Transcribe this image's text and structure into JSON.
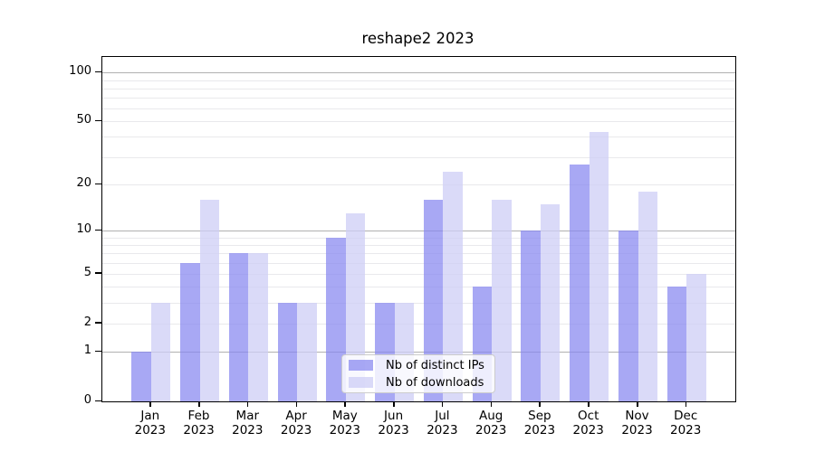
{
  "title": "reshape2 2023",
  "chart_data": {
    "type": "bar",
    "title": "reshape2 2023",
    "categories": [
      "Jan",
      "Feb",
      "Mar",
      "Apr",
      "May",
      "Jun",
      "Jul",
      "Aug",
      "Sep",
      "Oct",
      "Nov",
      "Dec"
    ],
    "year_label": "2023",
    "series": [
      {
        "name": "Nb of distinct IPs",
        "values": [
          1,
          6,
          7,
          3,
          9,
          3,
          16,
          4,
          10,
          27,
          10,
          4
        ],
        "color": "rgba(134,134,240,0.72)"
      },
      {
        "name": "Nb of downloads",
        "values": [
          3,
          16,
          7,
          3,
          13,
          3,
          24,
          16,
          15,
          43,
          18,
          5
        ],
        "color": "rgba(205,205,246,0.75)"
      }
    ],
    "yscale": "log1p",
    "ylim": [
      0,
      125
    ],
    "yticks": [
      100,
      50,
      20,
      10,
      5,
      2,
      1,
      0
    ],
    "grid": {
      "major": [
        1,
        10,
        100
      ],
      "minor": [
        2,
        3,
        4,
        5,
        6,
        7,
        8,
        9,
        20,
        30,
        40,
        50,
        60,
        70,
        80,
        90
      ],
      "major_color": "#b0b0b0",
      "minor_color": "#e9e9ec"
    },
    "legend_position": "lower center inside"
  }
}
